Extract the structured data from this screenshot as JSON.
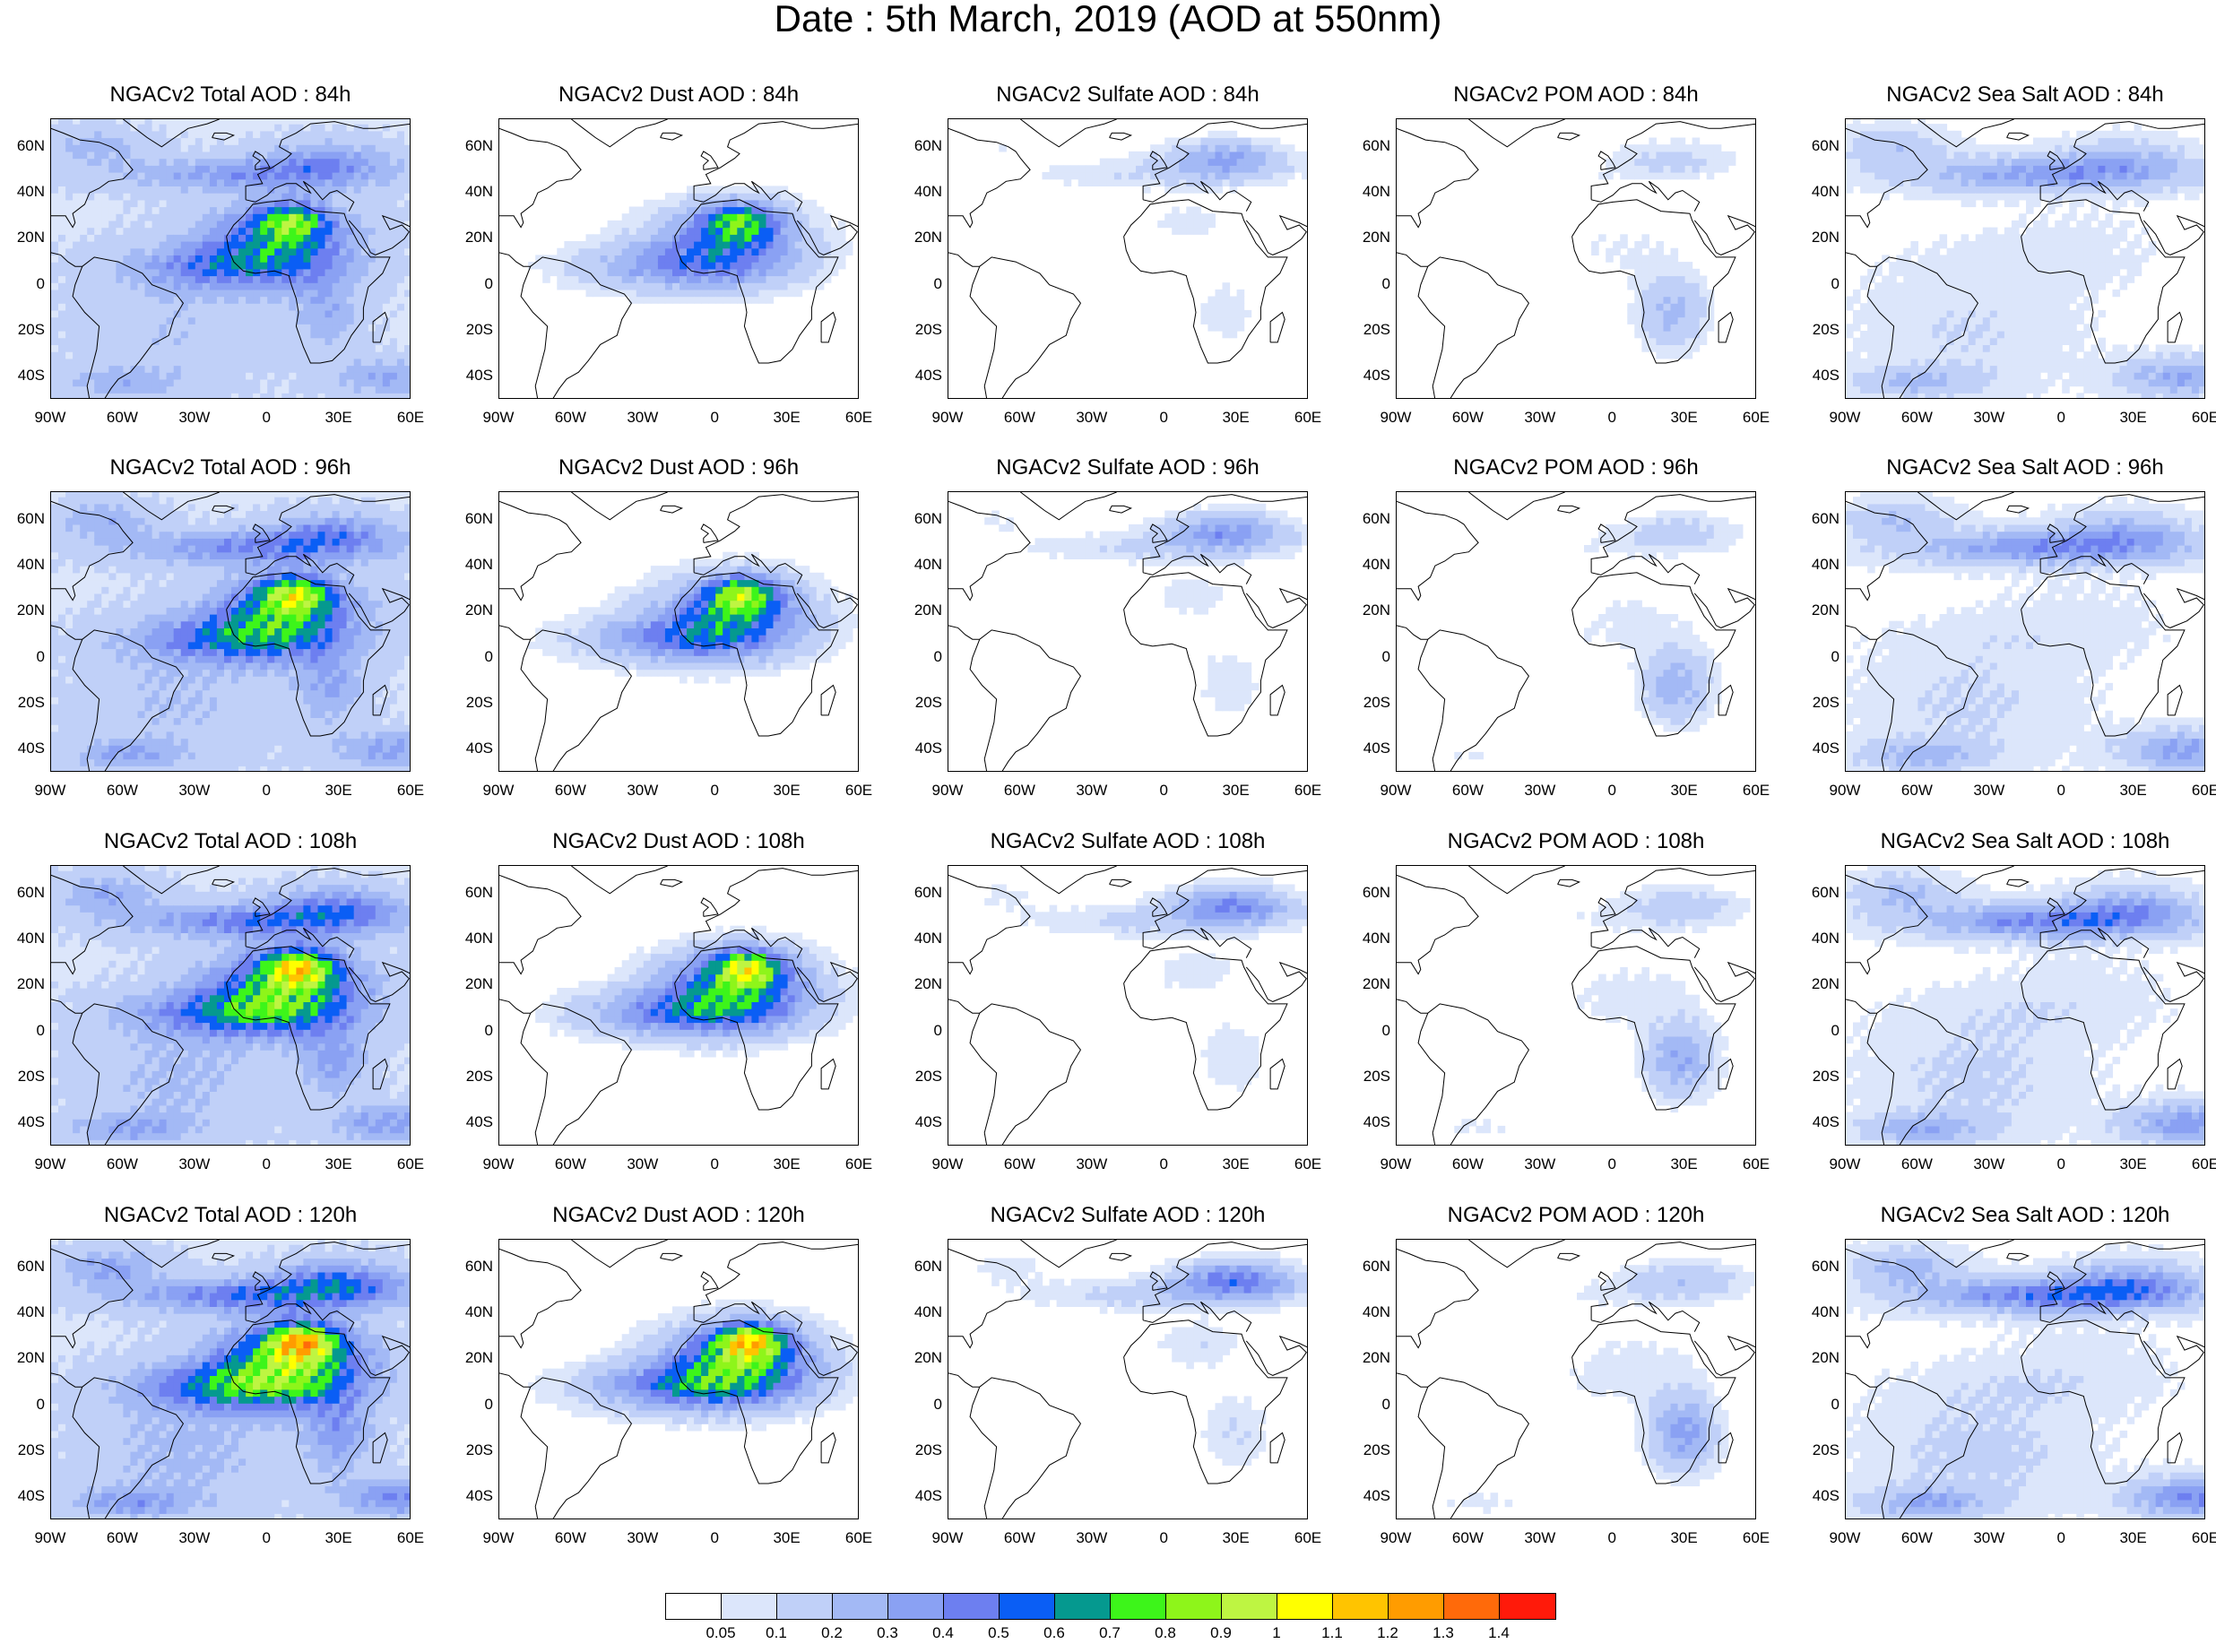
{
  "title": "Date : 5th March, 2019 (AOD at 550nm)",
  "columns": [
    {
      "key": "total",
      "name": "Total",
      "intensity": 1.0
    },
    {
      "key": "dust",
      "name": "Dust",
      "intensity": 0.85
    },
    {
      "key": "sulfate",
      "name": "Sulfate",
      "intensity": 0.25
    },
    {
      "key": "pom",
      "name": "POM",
      "intensity": 0.3
    },
    {
      "key": "seasalt",
      "name": "Sea Salt",
      "intensity": 0.6
    }
  ],
  "panel_titles": [
    [
      "NGACv2 Total AOD : 84h",
      "NGACv2 Dust AOD : 84h",
      "NGACv2 Sulfate AOD : 84h",
      "NGACv2 POM AOD : 84h",
      "NGACv2 Sea Salt AOD : 84h"
    ],
    [
      "NGACv2 Total AOD : 96h",
      "NGACv2 Dust AOD : 96h",
      "NGACv2 Sulfate AOD : 96h",
      "NGACv2 POM AOD : 96h",
      "NGACv2 Sea Salt AOD : 96h"
    ],
    [
      "NGACv2 Total AOD : 108h",
      "NGACv2 Dust AOD : 108h",
      "NGACv2 Sulfate AOD : 108h",
      "NGACv2 POM AOD : 108h",
      "NGACv2 Sea Salt AOD : 108h"
    ],
    [
      "NGACv2 Total AOD : 120h",
      "NGACv2 Dust AOD : 120h",
      "NGACv2 Sulfate AOD : 120h",
      "NGACv2 POM AOD : 120h",
      "NGACv2 Sea Salt  AOD : 120h"
    ]
  ],
  "map": {
    "lon_range": [
      -90,
      60
    ],
    "lat_range": [
      -50,
      72
    ],
    "lon_ticks": [
      "90W",
      "60W",
      "30W",
      "0",
      "30E",
      "60E"
    ],
    "lat_ticks": [
      "60N",
      "40N",
      "20N",
      "0",
      "20S",
      "40S"
    ]
  },
  "colorbar": {
    "colors": [
      "#ffffff",
      "#dce6fb",
      "#c0d0f8",
      "#a3b9f5",
      "#8aa1f3",
      "#6d7ff0",
      "#0a5ef5",
      "#05998f",
      "#3df51a",
      "#8ef51a",
      "#bef542",
      "#ffff00",
      "#ffc400",
      "#ff9c00",
      "#ff6a0a",
      "#ff1a0a"
    ],
    "labels": [
      "0.05",
      "0.1",
      "0.2",
      "0.3",
      "0.4",
      "0.5",
      "0.6",
      "0.7",
      "0.8",
      "0.9",
      "1",
      "1.1",
      "1.2",
      "1.3",
      "1.4"
    ]
  }
}
